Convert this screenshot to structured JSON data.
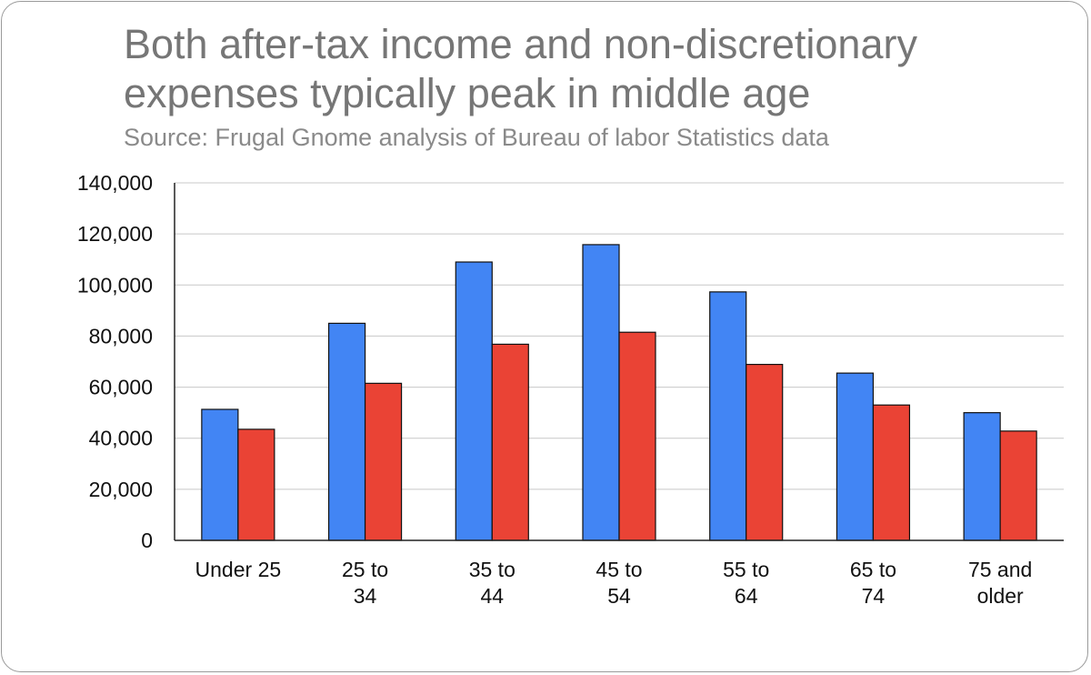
{
  "chart_data": {
    "type": "bar",
    "title": "Both after-tax income and non-discretionary expenses typically peak in middle age",
    "subtitle": "Source: Frugal Gnome analysis of Bureau of labor Statistics data",
    "categories": [
      "Under 25",
      "25 to 34",
      "35 to 44",
      "45 to 54",
      "55 to 64",
      "65 to 74",
      "75 and older"
    ],
    "series": [
      {
        "color": "#4285f4",
        "values": [
          51300,
          85000,
          109000,
          115800,
          97300,
          65500,
          50000
        ]
      },
      {
        "color": "#ea4335",
        "values": [
          43500,
          61500,
          76800,
          81500,
          68900,
          53000,
          42800
        ]
      }
    ],
    "ylim": [
      0,
      140000
    ],
    "yticks": [
      "0",
      "20,000",
      "40,000",
      "60,000",
      "80,000",
      "100,000",
      "120,000",
      "140,000"
    ],
    "grid": true,
    "legend": "none"
  }
}
